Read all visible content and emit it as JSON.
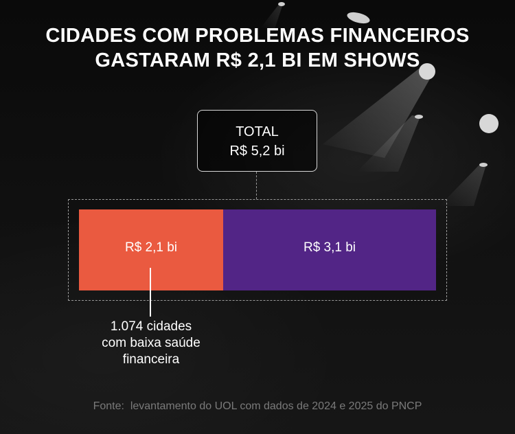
{
  "title": {
    "line1": "CIDADES COM PROBLEMAS FINANCEIROS",
    "line2": "GASTARAM R$ 2,1 BI EM SHOWS"
  },
  "total": {
    "label": "TOTAL",
    "value": "R$ 5,2 bi"
  },
  "callout": {
    "line1": "1.074 cidades",
    "line2": "com baixa saúde",
    "line3": "financeira"
  },
  "source": "Fonte:  levantamento do UOL com dados de 2024 e 2025 do PNCP",
  "colors": {
    "background": "#0c0c0c",
    "segment_low_health": "#ea5a40",
    "segment_rest": "#522586",
    "text": "#ffffff",
    "source_text": "#7a7a7a"
  },
  "chart_data": {
    "type": "bar",
    "orientation": "horizontal-stacked",
    "total": 5.2,
    "unit": "R$ bi",
    "series": [
      {
        "value": 2.1,
        "label": "R$ 2,1 bi",
        "color": "#ea5a40"
      },
      {
        "value": 3.1,
        "label": "R$ 3,1 bi",
        "color": "#522586"
      }
    ]
  }
}
